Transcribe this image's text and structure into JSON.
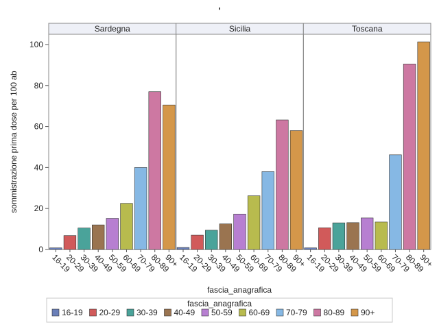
{
  "chart_data": {
    "type": "bar",
    "title": "'",
    "xlabel": "fascia_anagrafica",
    "ylabel": "sommistrazione prima dose per 100 ab",
    "ylim": [
      0,
      105
    ],
    "yticks": [
      0,
      20,
      40,
      60,
      80,
      100
    ],
    "grid": false,
    "legend": {
      "title": "fascia_anagrafica",
      "placement": "bottom"
    },
    "categories": [
      "16-19",
      "20-29",
      "30-39",
      "40-49",
      "50-59",
      "60-69",
      "70-79",
      "80-89",
      "90+"
    ],
    "colors": [
      "#6a7fb8",
      "#d15a5a",
      "#4aa39a",
      "#9a7450",
      "#b77fd1",
      "#b8bb4e",
      "#86b8e4",
      "#cd78a2",
      "#d4974a"
    ],
    "panels": [
      {
        "name": "Sardegna",
        "values": [
          0.8,
          6.8,
          10.5,
          12,
          15.2,
          22.5,
          40,
          77,
          70.5
        ]
      },
      {
        "name": "Sicilia",
        "values": [
          1,
          7,
          9.4,
          12.5,
          17.3,
          26.2,
          38,
          63.2,
          58
        ]
      },
      {
        "name": "Toscana",
        "values": [
          0.8,
          10.6,
          13,
          13.1,
          15.4,
          13.4,
          46.2,
          90.5,
          101.3
        ]
      }
    ]
  }
}
